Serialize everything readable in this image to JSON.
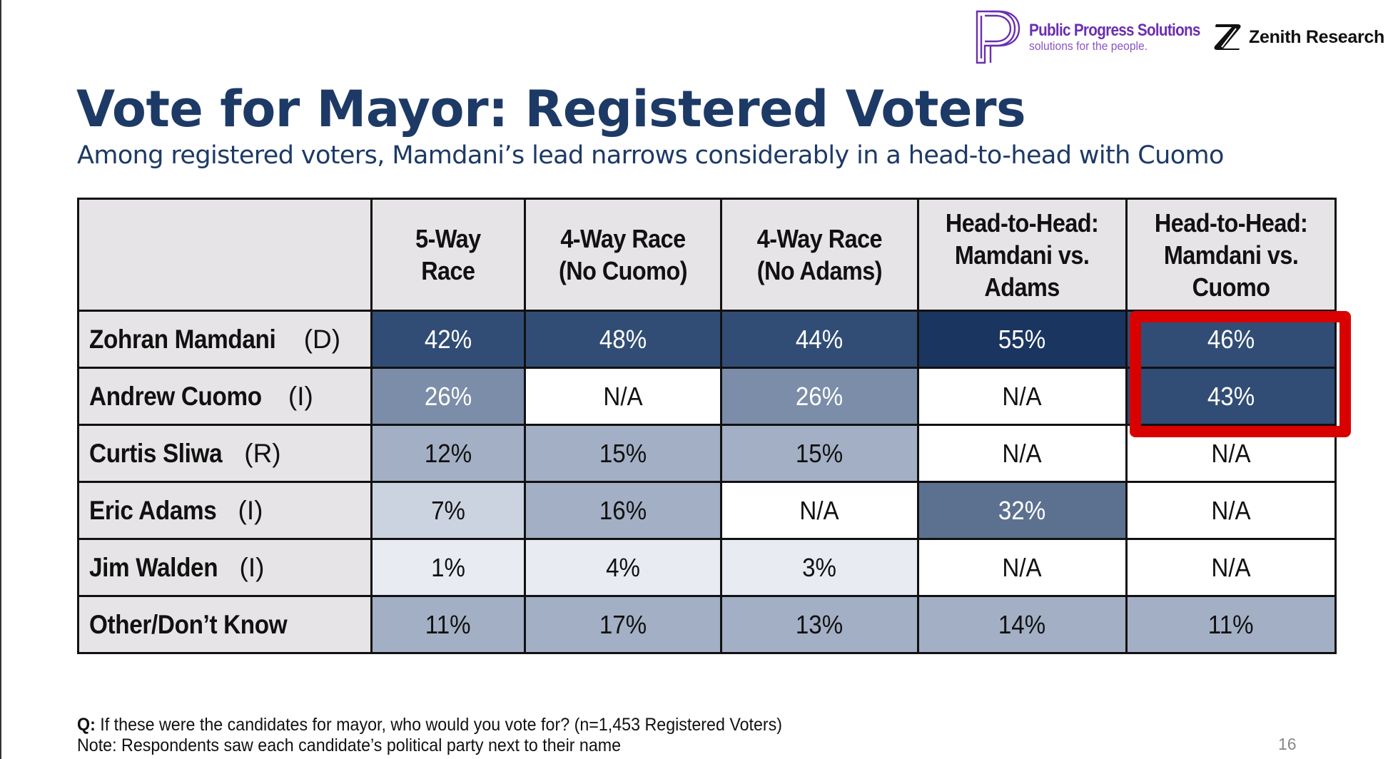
{
  "logos": {
    "primary": {
      "name": "Public Progress Solutions",
      "tagline": "solutions for the people.",
      "icon": "p-monogram-icon",
      "color": "#6a2fb0"
    },
    "secondary": {
      "name": "Zenith Research",
      "icon": "z-mark-icon",
      "color": "#111111"
    }
  },
  "title": "Vote for Mayor: Registered Voters",
  "subtitle": "Among registered voters, Mamdani’s lead narrows considerably in a head-to-head with Cuomo",
  "table": {
    "columns": [
      "",
      "5-Way Race",
      "4-Way Race (No Cuomo)",
      "4-Way Race (No Adams)",
      "Head-to-Head: Mamdani vs. Adams",
      "Head-to-Head: Mamdani vs. Cuomo"
    ],
    "column_lines": [
      [],
      [
        "5-Way",
        "Race"
      ],
      [
        "4-Way Race",
        "(No Cuomo)"
      ],
      [
        "4-Way Race",
        "(No Adams)"
      ],
      [
        "Head-to-Head:",
        "Mamdani vs.",
        "Adams"
      ],
      [
        "Head-to-Head:",
        "Mamdani vs.",
        "Cuomo"
      ]
    ],
    "rows": [
      {
        "name": "Zohran Mamdani",
        "party": "(D)",
        "values": [
          "42%",
          "48%",
          "44%",
          "55%",
          "46%"
        ]
      },
      {
        "name": "Andrew Cuomo",
        "party": "(I)",
        "values": [
          "26%",
          "N/A",
          "26%",
          "N/A",
          "43%"
        ]
      },
      {
        "name": "Curtis Sliwa",
        "party": "(R)",
        "values": [
          "12%",
          "15%",
          "15%",
          "N/A",
          "N/A"
        ]
      },
      {
        "name": "Eric Adams",
        "party": "(I)",
        "values": [
          "7%",
          "16%",
          "N/A",
          "32%",
          "N/A"
        ]
      },
      {
        "name": "Jim Walden",
        "party": "(I)",
        "values": [
          "1%",
          "4%",
          "3%",
          "N/A",
          "N/A"
        ]
      },
      {
        "name": "Other/Don’t Know",
        "party": "",
        "values": [
          "11%",
          "17%",
          "13%",
          "14%",
          "11%"
        ]
      }
    ],
    "highlighted_cells": {
      "column": "Head-to-Head: Mamdani vs. Cuomo",
      "rows": [
        "Zohran Mamdani",
        "Andrew Cuomo"
      ],
      "color": "#d90000"
    },
    "colors": {
      "header_bg": "#e6e4e6",
      "na_bg": "#ffffff",
      "scale": [
        {
          "min": 50,
          "bg": "#1a3560",
          "text": "#ffffff"
        },
        {
          "min": 40,
          "bg": "#314d75",
          "text": "#ffffff"
        },
        {
          "min": 30,
          "bg": "#5c7190",
          "text": "#ffffff"
        },
        {
          "min": 20,
          "bg": "#7b8da8",
          "text": "#ffffff"
        },
        {
          "min": 10,
          "bg": "#a3afc4",
          "text": "#111111"
        },
        {
          "min": 5,
          "bg": "#ccd3e0",
          "text": "#111111"
        },
        {
          "min": 0,
          "bg": "#e8ebf2",
          "text": "#111111"
        }
      ]
    }
  },
  "footer": {
    "question_label": "Q:",
    "question": " If these were the candidates for mayor, who would you vote for? (n=1,453 Registered Voters)",
    "note": "Note: Respondents saw each candidate’s political party next to their name"
  },
  "page_number": "16"
}
